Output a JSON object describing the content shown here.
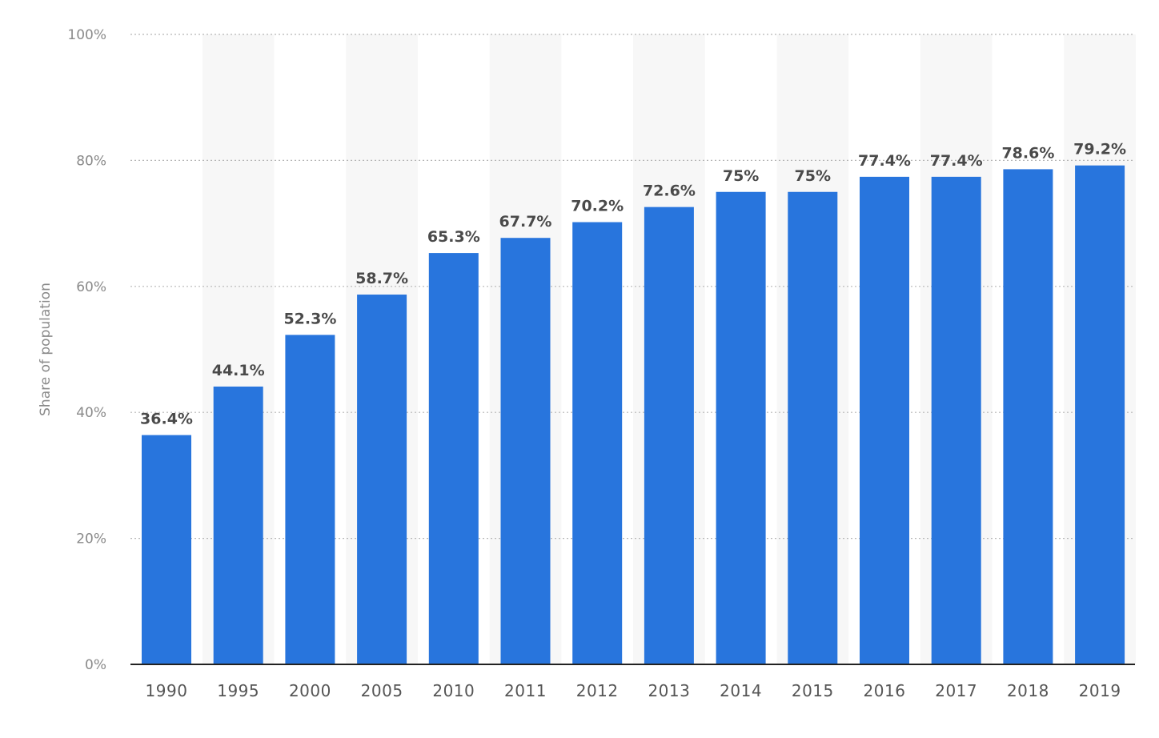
{
  "chart_data": {
    "type": "bar",
    "title": "",
    "xlabel": "",
    "ylabel": "Share of population",
    "ylim": [
      0,
      100
    ],
    "y_ticks": [
      0,
      20,
      40,
      60,
      80,
      100
    ],
    "y_tick_labels": [
      "0%",
      "20%",
      "40%",
      "60%",
      "80%",
      "100%"
    ],
    "grid": true,
    "legend": "none",
    "categories": [
      "1990",
      "1995",
      "2000",
      "2005",
      "2010",
      "2011",
      "2012",
      "2013",
      "2014",
      "2015",
      "2016",
      "2017",
      "2018",
      "2019"
    ],
    "series": [
      {
        "values": [
          36.4,
          44.1,
          52.3,
          58.7,
          65.3,
          67.7,
          70.2,
          72.6,
          75,
          75,
          77.4,
          77.4,
          78.6,
          79.2
        ],
        "labels": [
          "36.4%",
          "44.1%",
          "52.3%",
          "58.7%",
          "65.3%",
          "67.7%",
          "70.2%",
          "72.6%",
          "75%",
          "75%",
          "77.4%",
          "77.4%",
          "78.6%",
          "79.2%"
        ]
      }
    ],
    "colors": {
      "bar": "#2875dd",
      "band": "#f7f7f7",
      "grid": "#b5b5b5",
      "axis": "#222222"
    }
  }
}
